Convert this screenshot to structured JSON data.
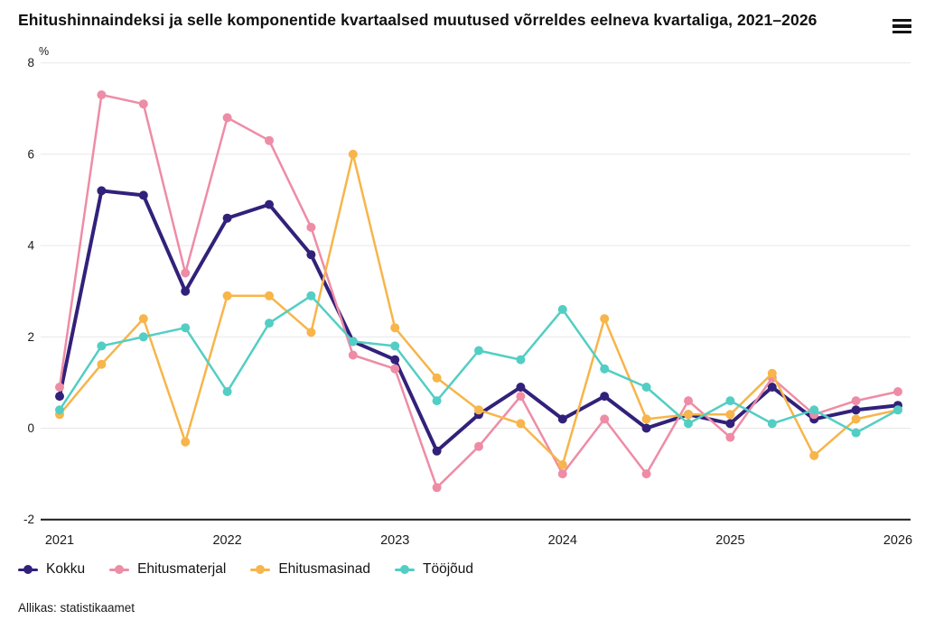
{
  "header": {
    "title": "Ehitushinnaindeksi ja selle komponentide kvartaalsed muutused võrreldes eelneva kvartaliga, 2021–2026",
    "menu_icon": "hamburger-menu-icon"
  },
  "footer": {
    "source": "Allikas: statistikaamet"
  },
  "chart_data": {
    "type": "line",
    "title": "Ehitushinnaindeksi ja selle komponentide kvartaalsed muutused võrreldes eelneva kvartaliga, 2021–2026",
    "xlabel": "",
    "ylabel": "%",
    "ylim": [
      -2,
      8
    ],
    "y_ticks": [
      8,
      6,
      4,
      2,
      0,
      -2
    ],
    "x_ticks": [
      "2021",
      "2022",
      "2023",
      "2024",
      "2025",
      "2026"
    ],
    "grid": true,
    "legend_position": "bottom",
    "categories": [
      "2021 Q1",
      "2021 Q2",
      "2021 Q3",
      "2021 Q4",
      "2022 Q1",
      "2022 Q2",
      "2022 Q3",
      "2022 Q4",
      "2023 Q1",
      "2023 Q2",
      "2023 Q3",
      "2023 Q4",
      "2024 Q1",
      "2024 Q2",
      "2024 Q3",
      "2024 Q4",
      "2025 Q1",
      "2025 Q2",
      "2025 Q3",
      "2025 Q4",
      "2026 Q1"
    ],
    "series": [
      {
        "name": "Kokku",
        "color": "#32217a",
        "values": [
          0.7,
          5.2,
          5.1,
          3.0,
          4.6,
          4.9,
          3.8,
          1.9,
          1.5,
          -0.5,
          0.3,
          0.9,
          0.2,
          0.7,
          0.0,
          0.3,
          0.1,
          0.9,
          0.2,
          0.4,
          0.5
        ]
      },
      {
        "name": "Ehitusmaterjal",
        "color": "#ee8ca6",
        "values": [
          0.9,
          7.3,
          7.1,
          3.4,
          6.8,
          6.3,
          4.4,
          1.6,
          1.3,
          -1.3,
          -0.4,
          0.7,
          -1.0,
          0.2,
          -1.0,
          0.6,
          -0.2,
          1.1,
          0.3,
          0.6,
          0.8
        ]
      },
      {
        "name": "Ehitusmasinad",
        "color": "#f7b54a",
        "values": [
          0.3,
          1.4,
          2.4,
          -0.3,
          2.9,
          2.9,
          2.1,
          6.0,
          2.2,
          1.1,
          0.4,
          0.1,
          -0.8,
          2.4,
          0.2,
          0.3,
          0.3,
          1.2,
          -0.6,
          0.2,
          0.4
        ]
      },
      {
        "name": "Tööjõud",
        "color": "#53cec4",
        "values": [
          0.4,
          1.8,
          2.0,
          2.2,
          0.8,
          2.3,
          2.9,
          1.9,
          1.8,
          0.6,
          1.7,
          1.5,
          2.6,
          1.3,
          0.9,
          0.1,
          0.6,
          0.1,
          0.4,
          -0.1,
          0.4
        ]
      }
    ]
  }
}
